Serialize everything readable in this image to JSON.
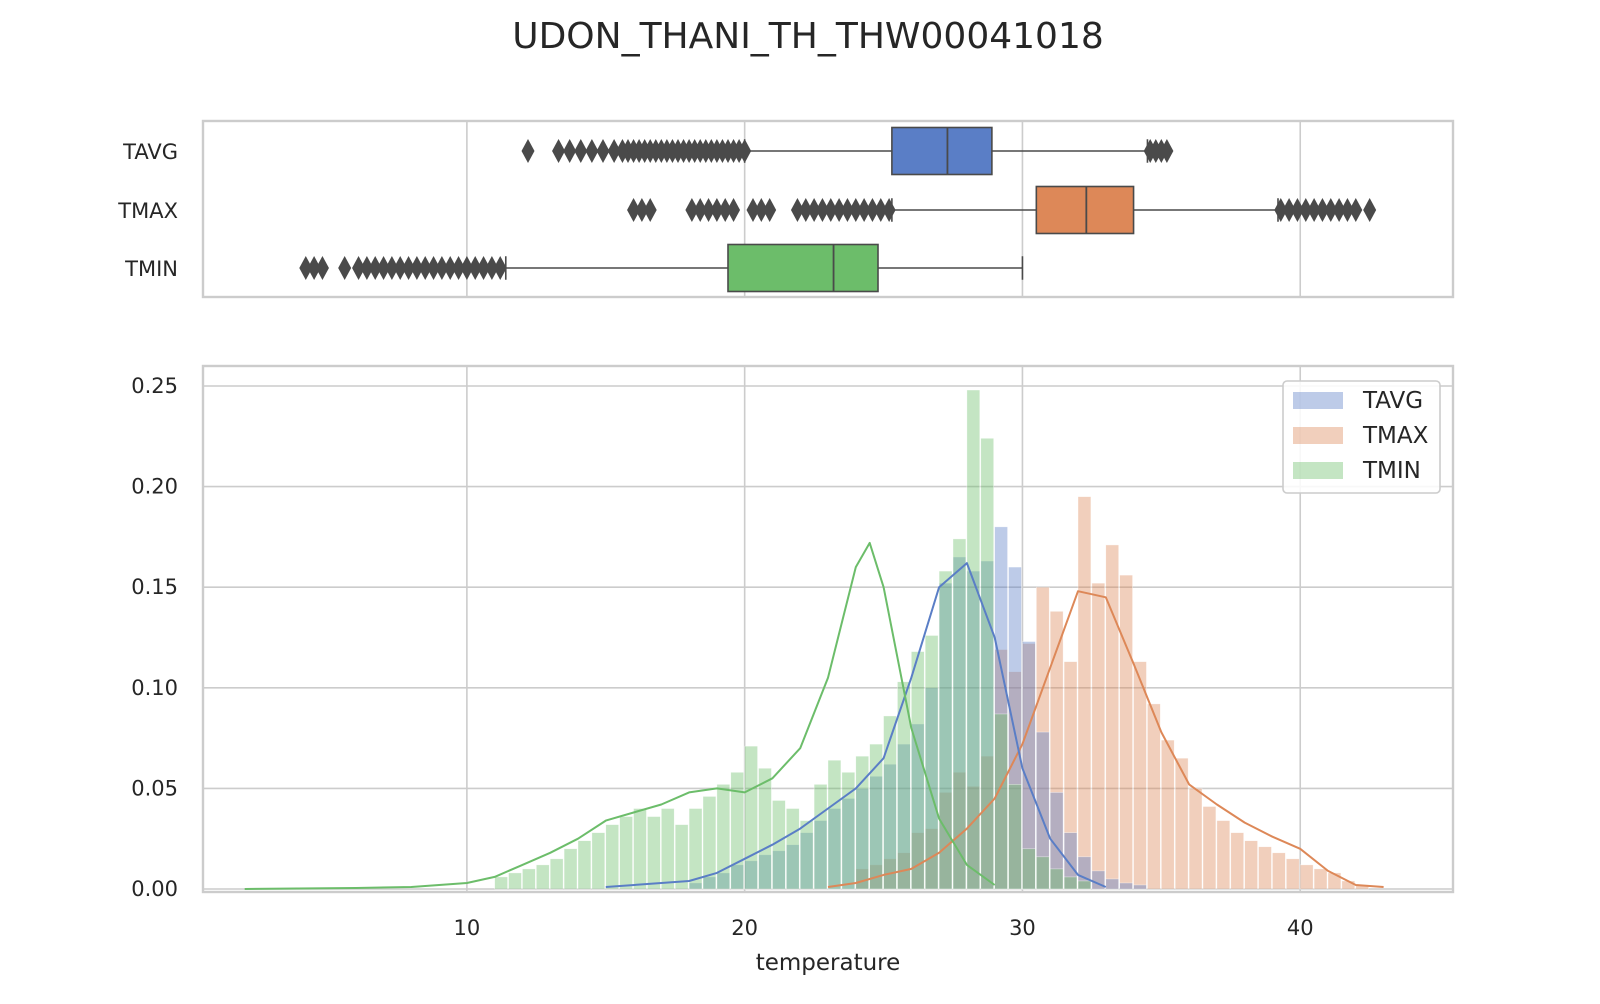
{
  "title": "UDON_THANI_TH_THW00041018",
  "colors": {
    "TAVG": "#5a7ec6",
    "TMAX": "#dd8858",
    "TMIN": "#6cbd6a",
    "outlier": "#4a4a4a",
    "grid": "#cccccc",
    "frame": "#cccccc"
  },
  "chart_data": [
    {
      "type": "box",
      "categories": [
        "TAVG",
        "TMAX",
        "TMIN"
      ],
      "xlim": [
        0.5,
        45.5
      ],
      "grid": true,
      "boxes": [
        {
          "name": "TAVG",
          "whisker_low": 20.0,
          "q1": 25.3,
          "median": 27.3,
          "q3": 28.9,
          "whisker_high": 34.5,
          "outliers": [
            12.2,
            13.3,
            13.7,
            14.1,
            14.5,
            14.9,
            15.3,
            15.6,
            15.8,
            16.0,
            16.2,
            16.4,
            16.6,
            16.8,
            17.0,
            17.2,
            17.4,
            17.6,
            17.8,
            18.0,
            18.2,
            18.4,
            18.6,
            18.8,
            19.0,
            19.2,
            19.4,
            19.6,
            19.8,
            20.0,
            34.6,
            34.8,
            35.0,
            35.2
          ]
        },
        {
          "name": "TMAX",
          "whisker_low": 25.3,
          "q1": 30.5,
          "median": 32.3,
          "q3": 34.0,
          "whisker_high": 39.2,
          "outliers": [
            16.0,
            16.3,
            16.6,
            18.1,
            18.4,
            18.7,
            19.0,
            19.3,
            19.6,
            20.3,
            20.6,
            20.9,
            21.9,
            22.2,
            22.5,
            22.8,
            23.1,
            23.4,
            23.7,
            24.0,
            24.3,
            24.6,
            24.9,
            25.2,
            39.3,
            39.6,
            39.9,
            40.2,
            40.5,
            40.8,
            41.1,
            41.4,
            41.7,
            42.0,
            42.5
          ]
        },
        {
          "name": "TMIN",
          "whisker_low": 11.4,
          "q1": 19.4,
          "median": 23.2,
          "q3": 24.8,
          "whisker_high": 30.0,
          "outliers": [
            4.2,
            4.5,
            4.8,
            5.6,
            6.1,
            6.4,
            6.7,
            7.0,
            7.3,
            7.6,
            7.9,
            8.2,
            8.5,
            8.8,
            9.1,
            9.4,
            9.7,
            10.0,
            10.3,
            10.6,
            10.9,
            11.2
          ]
        }
      ]
    },
    {
      "type": "histogram+kde",
      "xlabel": "temperature",
      "ylabel": "",
      "xlim": [
        0.5,
        45.5
      ],
      "ylim": [
        0,
        0.26
      ],
      "xticks": [
        10,
        20,
        30,
        40
      ],
      "yticks": [
        "0.00",
        "0.05",
        "0.10",
        "0.15",
        "0.20",
        "0.25"
      ],
      "legend": {
        "position": "top-right",
        "entries": [
          "TAVG",
          "TMAX",
          "TMIN"
        ]
      },
      "grid": true,
      "series": [
        {
          "name": "TAVG",
          "bin_start": 18.0,
          "bin_width": 0.5,
          "hist": [
            0.003,
            0.006,
            0.008,
            0.012,
            0.014,
            0.017,
            0.019,
            0.022,
            0.028,
            0.034,
            0.04,
            0.045,
            0.05,
            0.056,
            0.062,
            0.072,
            0.082,
            0.1,
            0.152,
            0.165,
            0.158,
            0.163,
            0.18,
            0.16,
            0.123,
            0.078,
            0.048,
            0.028,
            0.016,
            0.009,
            0.005,
            0.003,
            0.002
          ],
          "kde_x": [
            15,
            17,
            18,
            19,
            20,
            21,
            22,
            23,
            24,
            25,
            26,
            27,
            28,
            29,
            30,
            31,
            32,
            33
          ],
          "kde_y": [
            0.001,
            0.003,
            0.004,
            0.008,
            0.015,
            0.022,
            0.03,
            0.04,
            0.05,
            0.065,
            0.105,
            0.15,
            0.162,
            0.125,
            0.06,
            0.025,
            0.007,
            0.001
          ]
        },
        {
          "name": "TMAX",
          "bin_start": 24.0,
          "bin_width": 0.5,
          "hist": [
            0.01,
            0.012,
            0.015,
            0.018,
            0.028,
            0.03,
            0.048,
            0.058,
            0.051,
            0.066,
            0.119,
            0.108,
            0.122,
            0.15,
            0.138,
            0.113,
            0.195,
            0.152,
            0.171,
            0.156,
            0.113,
            0.092,
            0.074,
            0.065,
            0.05,
            0.041,
            0.034,
            0.028,
            0.024,
            0.021,
            0.018,
            0.015,
            0.012,
            0.01,
            0.008,
            0.004,
            0.002
          ],
          "kde_x": [
            23,
            24,
            25,
            26,
            27,
            28,
            29,
            30,
            31,
            32,
            33,
            34,
            35,
            36,
            37,
            38,
            39,
            40,
            41,
            42,
            43
          ],
          "kde_y": [
            0.001,
            0.003,
            0.007,
            0.01,
            0.018,
            0.03,
            0.045,
            0.072,
            0.11,
            0.148,
            0.145,
            0.112,
            0.078,
            0.052,
            0.042,
            0.033,
            0.026,
            0.02,
            0.009,
            0.002,
            0.001
          ]
        },
        {
          "name": "TMIN",
          "bin_start": 11.0,
          "bin_width": 0.5,
          "hist": [
            0.006,
            0.008,
            0.01,
            0.012,
            0.015,
            0.02,
            0.024,
            0.028,
            0.032,
            0.036,
            0.04,
            0.036,
            0.04,
            0.032,
            0.04,
            0.046,
            0.052,
            0.058,
            0.071,
            0.06,
            0.044,
            0.04,
            0.034,
            0.052,
            0.064,
            0.058,
            0.066,
            0.072,
            0.086,
            0.103,
            0.118,
            0.126,
            0.158,
            0.174,
            0.248,
            0.224,
            0.087,
            0.052,
            0.02,
            0.016,
            0.01,
            0.006,
            0.004
          ],
          "kde_x": [
            2,
            6,
            8,
            10,
            11,
            12,
            13,
            14,
            15,
            16,
            17,
            18,
            19,
            20,
            21,
            22,
            23,
            24,
            24.5,
            25,
            26,
            27,
            28,
            29
          ],
          "kde_y": [
            0.0,
            0.0005,
            0.001,
            0.003,
            0.006,
            0.012,
            0.018,
            0.025,
            0.034,
            0.038,
            0.042,
            0.048,
            0.05,
            0.048,
            0.055,
            0.07,
            0.105,
            0.16,
            0.172,
            0.15,
            0.08,
            0.035,
            0.012,
            0.002
          ]
        }
      ]
    }
  ]
}
